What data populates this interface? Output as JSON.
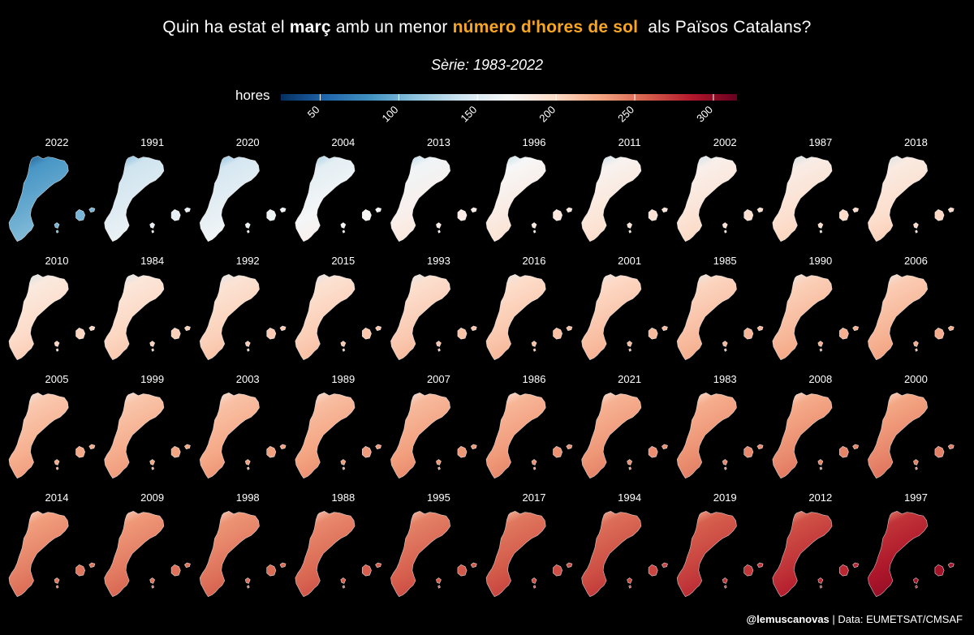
{
  "title": {
    "part1": "Quin ha estat el ",
    "bold1": "març",
    "part2": " amb un menor ",
    "bold2": "número d'hores de sol",
    "part3": "  als Països Catalans?",
    "highlight_color": "#f6a623"
  },
  "subtitle": "Sèrie: 1983-2022",
  "legend": {
    "title": "hores",
    "ticks": [
      50,
      100,
      150,
      200,
      250,
      300
    ],
    "range": [
      25,
      315
    ],
    "colors": [
      "#053061",
      "#2166ac",
      "#4393c3",
      "#92c5de",
      "#d1e5f0",
      "#f7f7f7",
      "#fddbc7",
      "#f4a582",
      "#d6604d",
      "#b2182b",
      "#67001f"
    ]
  },
  "chart_data": {
    "type": "small-multiple-choropleth",
    "metric": "hores de sol (març)",
    "ordering": "ascending by total sunshine hours",
    "years": [
      2022,
      1991,
      2020,
      2004,
      2013,
      1996,
      2011,
      2002,
      1987,
      2018,
      2010,
      1984,
      1992,
      2015,
      1993,
      2016,
      2001,
      1985,
      1990,
      2006,
      2005,
      1999,
      2003,
      1989,
      2007,
      1986,
      2021,
      1983,
      2008,
      2000,
      2014,
      2009,
      1998,
      1988,
      1995,
      2017,
      1994,
      2019,
      2012,
      1997
    ],
    "approx_mean_hours": [
      90,
      145,
      150,
      160,
      170,
      175,
      180,
      183,
      186,
      188,
      190,
      193,
      196,
      198,
      200,
      202,
      205,
      207,
      210,
      212,
      214,
      216,
      218,
      220,
      222,
      224,
      226,
      228,
      230,
      232,
      236,
      238,
      240,
      245,
      248,
      252,
      256,
      262,
      268,
      280
    ]
  },
  "credit": {
    "handle": "@lemuscanovas",
    "source": " | Data: EUMETSAT/CMSAF"
  }
}
